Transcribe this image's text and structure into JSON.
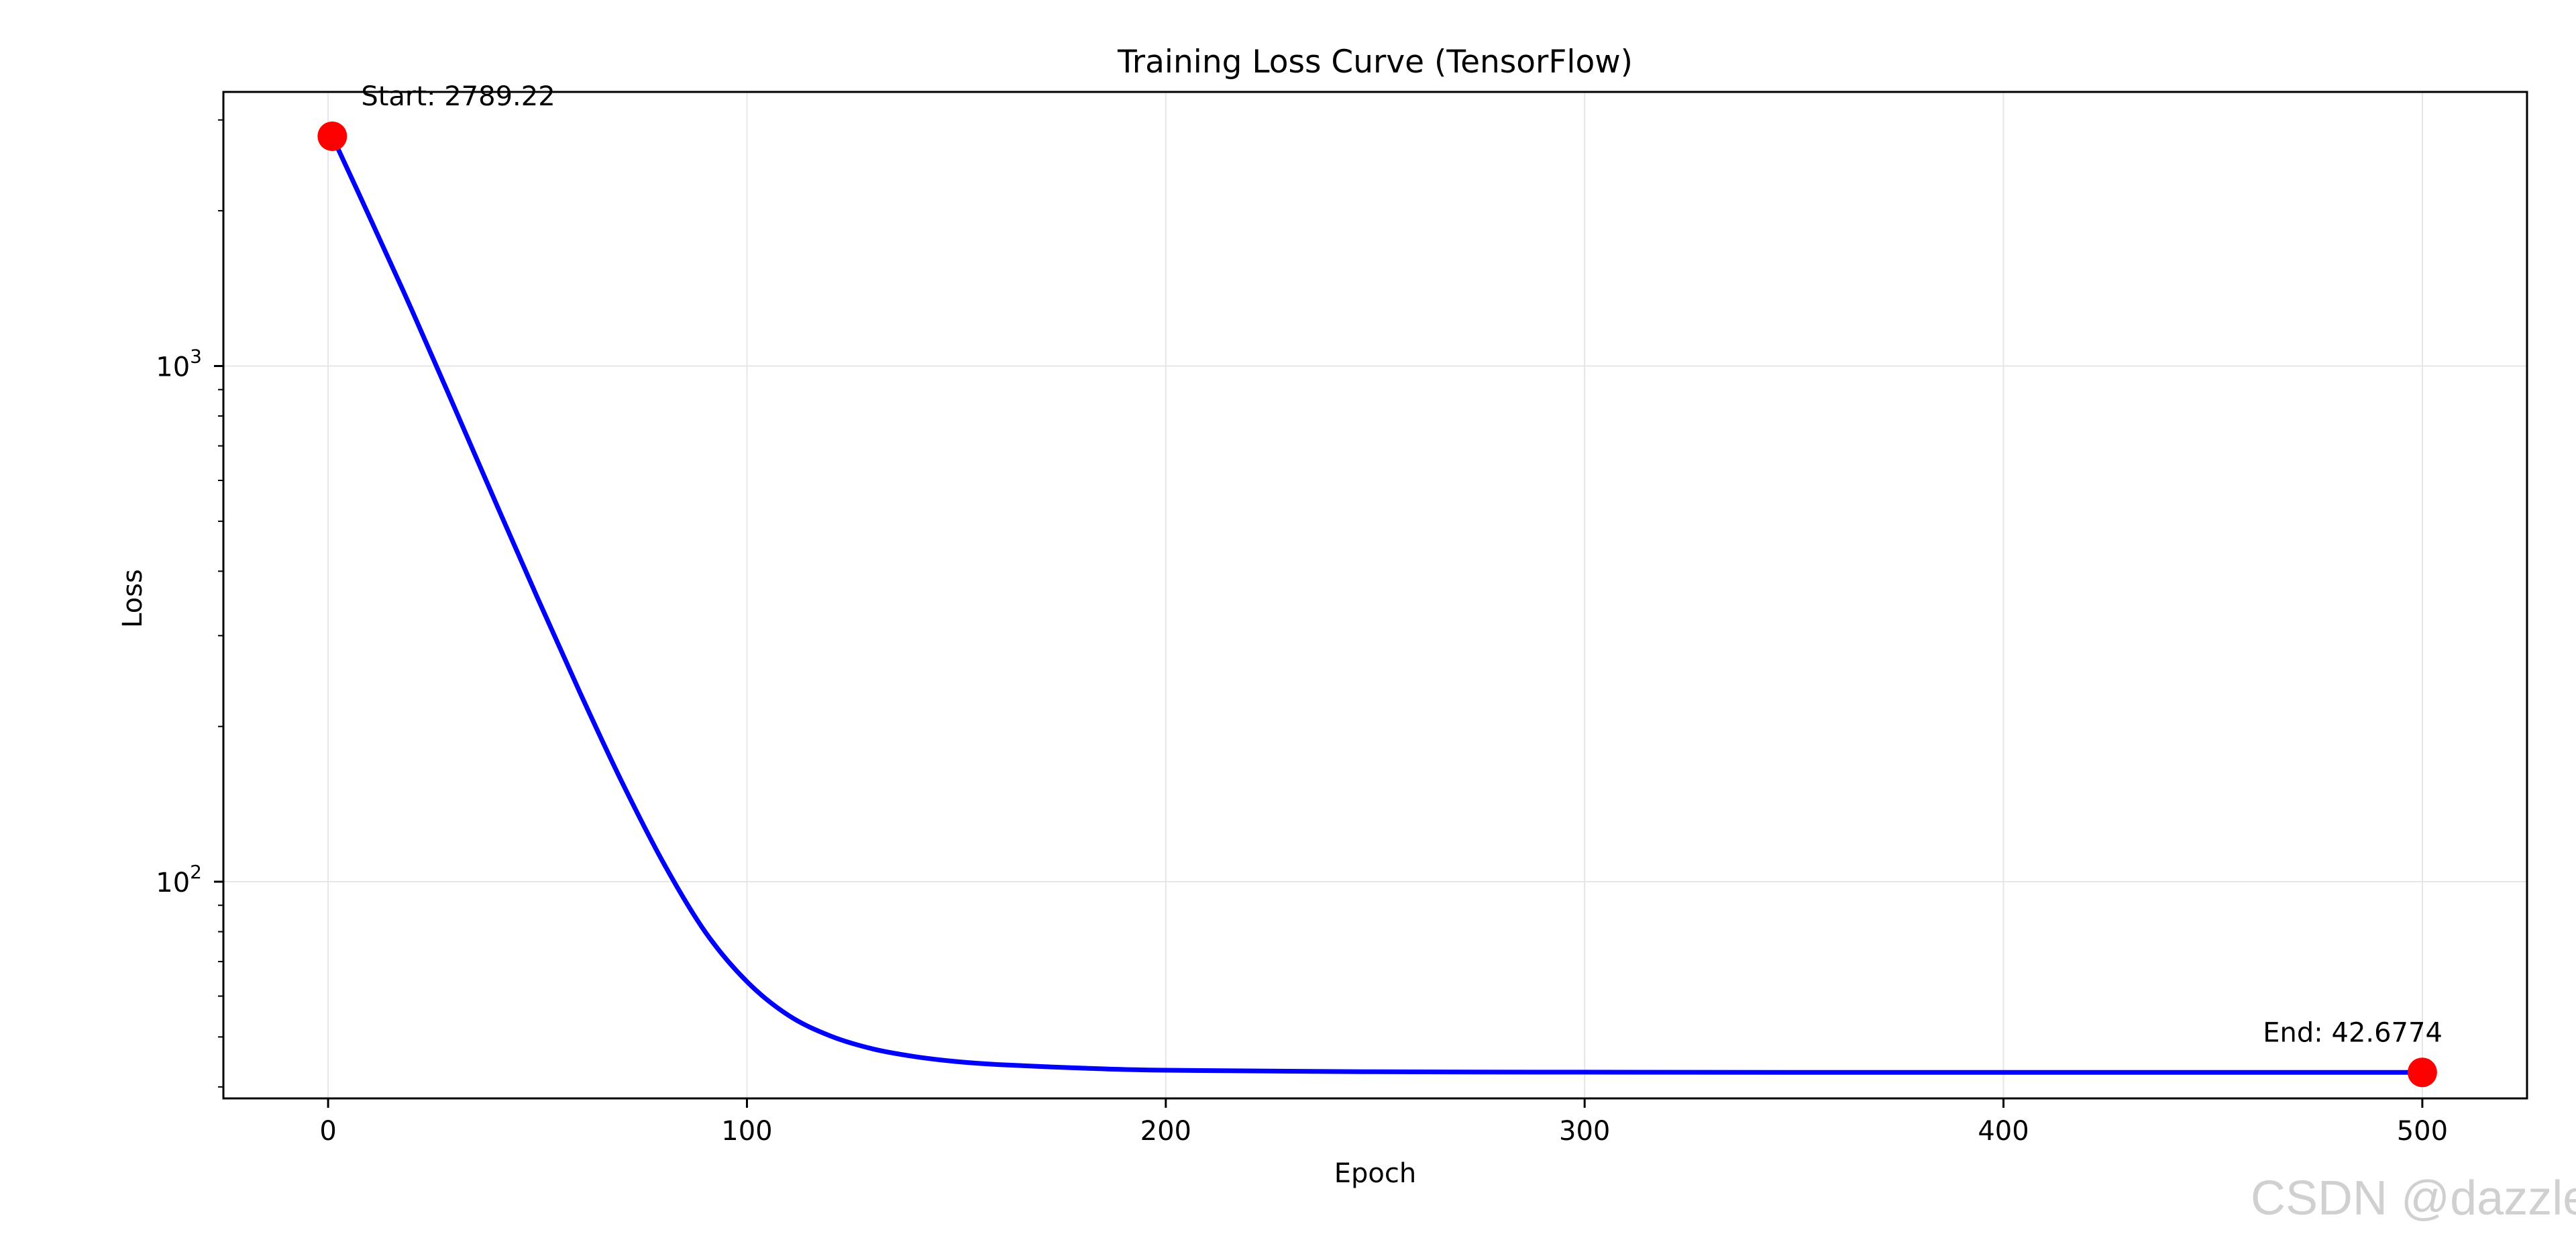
{
  "chart_data": {
    "type": "line",
    "title": "Training Loss Curve (TensorFlow)",
    "xlabel": "Epoch",
    "ylabel": "Loss",
    "xlim": [
      -25,
      525
    ],
    "ylim": [
      38,
      3400
    ],
    "yscale": "log",
    "grid": true,
    "legend": "none",
    "x_ticks": [
      0,
      100,
      200,
      300,
      400,
      500
    ],
    "y_ticks": [
      {
        "value": 100,
        "label": "10",
        "exp": "2"
      },
      {
        "value": 1000,
        "label": "10",
        "exp": "3"
      }
    ],
    "series": [
      {
        "color": "#0000ff",
        "x": [
          1,
          10,
          20,
          30,
          40,
          50,
          60,
          70,
          80,
          90,
          100,
          110,
          120,
          130,
          140,
          150,
          160,
          180,
          200,
          250,
          300,
          350,
          400,
          450,
          500
        ],
        "y": [
          2789.22,
          1937,
          1283,
          837,
          544,
          355,
          234,
          157,
          109,
          80,
          64,
          55,
          50.2,
          47.4,
          45.8,
          44.8,
          44.2,
          43.5,
          43.1,
          42.8,
          42.72,
          42.69,
          42.68,
          42.678,
          42.6774
        ]
      }
    ],
    "annotations": [
      {
        "text": "Start: 2789.22",
        "x": 1,
        "y": 2789.22,
        "marker_color": "#ff0000"
      },
      {
        "text": "End: 42.6774",
        "x": 500,
        "y": 42.6774,
        "marker_color": "#ff0000"
      }
    ],
    "colors": {
      "line": "#0000ff",
      "marker": "#ff0000",
      "grid": "#e6e6e6",
      "axes": "#000000"
    }
  },
  "watermark": "CSDN @dazzle"
}
